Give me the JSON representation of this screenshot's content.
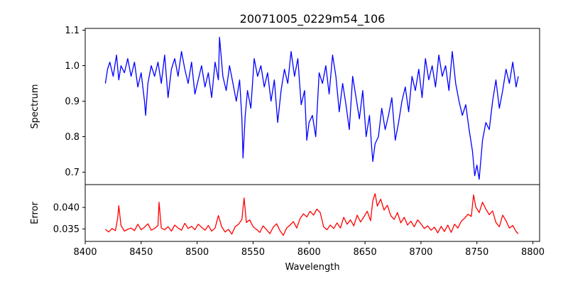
{
  "chart_data": [
    {
      "type": "line",
      "title": "20071005_0229m54_106",
      "xlabel": "",
      "ylabel": "Spectrum",
      "xlim": [
        8400,
        8806
      ],
      "ylim": [
        0.665,
        1.105
      ],
      "xticks": [],
      "yticks": [
        0.7,
        0.8,
        0.9,
        1.0,
        1.1
      ],
      "ytick_labels": [
        "0.7",
        "0.8",
        "0.9",
        "1.0",
        "1.1"
      ],
      "grid": false,
      "series": [
        {
          "color": "#0000ff",
          "x": [
            8418,
            8420,
            8422,
            8425,
            8428,
            8430,
            8432,
            8435,
            8438,
            8441,
            8444,
            8447,
            8450,
            8453,
            8454,
            8456,
            8459,
            8462,
            8465,
            8468,
            8471,
            8474,
            8477,
            8480,
            8483,
            8486,
            8489,
            8492,
            8495,
            8498,
            8501,
            8504,
            8507,
            8510,
            8513,
            8516,
            8519,
            8520,
            8523,
            8526,
            8529,
            8532,
            8535,
            8538,
            8540,
            8541,
            8542,
            8543,
            8545,
            8548,
            8551,
            8554,
            8557,
            8560,
            8563,
            8566,
            8569,
            8572,
            8575,
            8578,
            8581,
            8584,
            8587,
            8590,
            8593,
            8596,
            8598,
            8600,
            8603,
            8606,
            8609,
            8612,
            8615,
            8618,
            8621,
            8624,
            8627,
            8630,
            8633,
            8636,
            8639,
            8642,
            8645,
            8648,
            8651,
            8654,
            8656,
            8657,
            8659,
            8662,
            8665,
            8668,
            8671,
            8674,
            8677,
            8680,
            8683,
            8686,
            8689,
            8692,
            8695,
            8698,
            8701,
            8704,
            8707,
            8710,
            8713,
            8716,
            8719,
            8722,
            8725,
            8728,
            8731,
            8734,
            8737,
            8740,
            8743,
            8746,
            8748,
            8750,
            8752,
            8755,
            8758,
            8761,
            8764,
            8767,
            8770,
            8773,
            8776,
            8779,
            8782,
            8785,
            8787
          ],
          "values": [
            0.95,
            0.99,
            1.01,
            0.97,
            1.03,
            0.96,
            1.0,
            0.98,
            1.02,
            0.97,
            1.01,
            0.94,
            0.98,
            0.9,
            0.86,
            0.95,
            1.0,
            0.97,
            1.01,
            0.95,
            1.03,
            0.91,
            0.99,
            1.02,
            0.97,
            1.04,
            0.99,
            0.95,
            1.01,
            0.92,
            0.96,
            1.0,
            0.94,
            0.98,
            0.91,
            1.01,
            0.96,
            1.08,
            0.97,
            0.93,
            1.0,
            0.95,
            0.9,
            0.96,
            0.85,
            0.74,
            0.8,
            0.86,
            0.93,
            0.88,
            1.02,
            0.97,
            1.0,
            0.94,
            0.98,
            0.9,
            0.96,
            0.84,
            0.93,
            0.99,
            0.95,
            1.04,
            0.97,
            1.02,
            0.89,
            0.93,
            0.79,
            0.84,
            0.86,
            0.8,
            0.98,
            0.95,
            1.0,
            0.92,
            1.03,
            0.97,
            0.87,
            0.95,
            0.89,
            0.82,
            0.97,
            0.91,
            0.85,
            0.93,
            0.8,
            0.86,
            0.77,
            0.73,
            0.78,
            0.8,
            0.88,
            0.82,
            0.86,
            0.91,
            0.79,
            0.84,
            0.9,
            0.94,
            0.87,
            0.97,
            0.93,
            0.99,
            0.91,
            1.02,
            0.96,
            1.0,
            0.94,
            1.03,
            0.97,
            1.0,
            0.93,
            1.04,
            0.95,
            0.9,
            0.86,
            0.89,
            0.82,
            0.76,
            0.69,
            0.72,
            0.68,
            0.79,
            0.84,
            0.82,
            0.9,
            0.96,
            0.88,
            0.93,
            0.99,
            0.95,
            1.01,
            0.94,
            0.97
          ]
        }
      ]
    },
    {
      "type": "line",
      "title": "",
      "xlabel": "Wavelength",
      "ylabel": "Error",
      "xlim": [
        8400,
        8806
      ],
      "ylim": [
        0.0321,
        0.0453
      ],
      "xticks": [
        8400,
        8450,
        8500,
        8550,
        8600,
        8650,
        8700,
        8750,
        8800
      ],
      "xtick_labels": [
        "8400",
        "8450",
        "8500",
        "8550",
        "8600",
        "8650",
        "8700",
        "8750",
        "8800"
      ],
      "yticks": [
        0.035,
        0.04
      ],
      "ytick_labels": [
        "0.035",
        "0.040"
      ],
      "grid": false,
      "series": [
        {
          "color": "#ff0000",
          "x": [
            8418,
            8421,
            8424,
            8427,
            8429,
            8430,
            8432,
            8435,
            8438,
            8441,
            8444,
            8447,
            8450,
            8453,
            8456,
            8459,
            8462,
            8465,
            8466,
            8468,
            8471,
            8474,
            8477,
            8480,
            8483,
            8486,
            8489,
            8492,
            8495,
            8498,
            8501,
            8504,
            8507,
            8510,
            8513,
            8516,
            8519,
            8522,
            8525,
            8528,
            8531,
            8534,
            8537,
            8540,
            8542,
            8544,
            8547,
            8550,
            8553,
            8556,
            8559,
            8562,
            8565,
            8568,
            8571,
            8574,
            8577,
            8580,
            8583,
            8586,
            8589,
            8592,
            8595,
            8598,
            8601,
            8604,
            8607,
            8610,
            8613,
            8616,
            8619,
            8622,
            8625,
            8628,
            8631,
            8634,
            8637,
            8640,
            8643,
            8646,
            8649,
            8652,
            8655,
            8657,
            8659,
            8661,
            8664,
            8667,
            8670,
            8673,
            8676,
            8679,
            8682,
            8685,
            8688,
            8691,
            8694,
            8697,
            8700,
            8703,
            8706,
            8709,
            8712,
            8715,
            8718,
            8721,
            8724,
            8727,
            8730,
            8733,
            8736,
            8739,
            8742,
            8745,
            8747,
            8749,
            8752,
            8755,
            8758,
            8761,
            8764,
            8767,
            8770,
            8773,
            8776,
            8779,
            8782,
            8785,
            8787
          ],
          "values": [
            0.0349,
            0.0343,
            0.0351,
            0.0346,
            0.0375,
            0.0404,
            0.0358,
            0.0345,
            0.0349,
            0.0352,
            0.0346,
            0.0361,
            0.0348,
            0.0354,
            0.0362,
            0.0347,
            0.0351,
            0.0358,
            0.0412,
            0.0352,
            0.0348,
            0.0355,
            0.0345,
            0.0359,
            0.0352,
            0.0347,
            0.0363,
            0.0351,
            0.0356,
            0.0348,
            0.0361,
            0.0354,
            0.0347,
            0.0358,
            0.0345,
            0.0352,
            0.0381,
            0.0355,
            0.0343,
            0.0349,
            0.0338,
            0.0355,
            0.0361,
            0.0372,
            0.0422,
            0.0365,
            0.0371,
            0.0355,
            0.0349,
            0.0342,
            0.0357,
            0.0348,
            0.0339,
            0.0354,
            0.0362,
            0.0346,
            0.0335,
            0.0352,
            0.0359,
            0.0367,
            0.0352,
            0.0374,
            0.0385,
            0.0378,
            0.0391,
            0.0382,
            0.0396,
            0.0388,
            0.0355,
            0.0348,
            0.0359,
            0.0351,
            0.0364,
            0.0352,
            0.0377,
            0.0361,
            0.0371,
            0.0357,
            0.0382,
            0.0366,
            0.0378,
            0.0391,
            0.0369,
            0.0416,
            0.0432,
            0.0403,
            0.0419,
            0.0394,
            0.0405,
            0.0381,
            0.0372,
            0.0388,
            0.0364,
            0.0377,
            0.0359,
            0.0368,
            0.0355,
            0.0371,
            0.0362,
            0.0351,
            0.0357,
            0.0347,
            0.0354,
            0.0341,
            0.0356,
            0.0344,
            0.0359,
            0.0342,
            0.0361,
            0.0352,
            0.0368,
            0.0375,
            0.0384,
            0.0379,
            0.0429,
            0.0401,
            0.0388,
            0.0412,
            0.0396,
            0.0383,
            0.0392,
            0.0365,
            0.0355,
            0.0382,
            0.0369,
            0.0352,
            0.0358,
            0.0344,
            0.0339
          ]
        }
      ]
    }
  ]
}
